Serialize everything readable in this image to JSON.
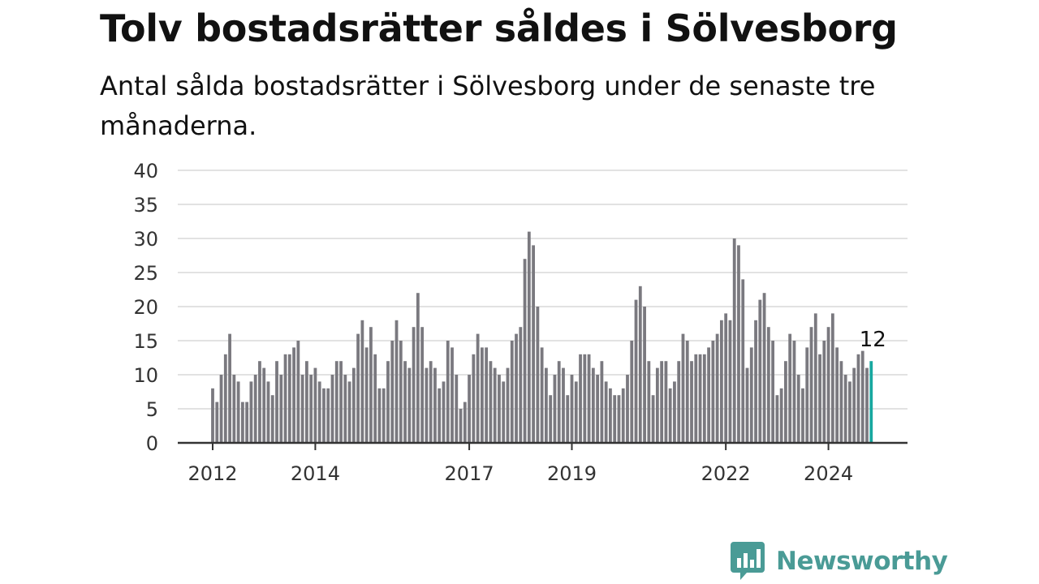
{
  "header": {
    "title": "Tolv bostadsrätter såldes i Sölvesborg",
    "subtitle": "Antal sålda bostadsrätter i Sölvesborg under de senaste tre månaderna."
  },
  "brand": {
    "name": "Newsworthy",
    "color": "#4a9b96"
  },
  "colors": {
    "bar": "#7a797f",
    "highlight": "#18a8a0",
    "grid": "#d9d9d9",
    "axis": "#333333"
  },
  "chart_data": {
    "type": "bar",
    "title": "Tolv bostadsrätter såldes i Sölvesborg",
    "subtitle": "Antal sålda bostadsrätter i Sölvesborg under de senaste tre månaderna.",
    "xlabel": "",
    "ylabel": "",
    "ylim": [
      0,
      40
    ],
    "yticks": [
      "0",
      "5",
      "10",
      "15",
      "20",
      "25",
      "30",
      "35",
      "40"
    ],
    "x_tick_labels": [
      {
        "label": "2012",
        "index": 0
      },
      {
        "label": "2014",
        "index": 24
      },
      {
        "label": "2017",
        "index": 60
      },
      {
        "label": "2019",
        "index": 84
      },
      {
        "label": "2022",
        "index": 120
      },
      {
        "label": "2024",
        "index": 144
      }
    ],
    "grid": true,
    "legend": "none",
    "highlight_index": 154,
    "highlight_label": "12",
    "series": [
      {
        "values": [
          8,
          6,
          10,
          13,
          16,
          10,
          9,
          6,
          6,
          9,
          10,
          12,
          11,
          9,
          7,
          12,
          10,
          13,
          13,
          14,
          15,
          10,
          12,
          10,
          11,
          9,
          8,
          8,
          10,
          12,
          12,
          10,
          9,
          11,
          16,
          18,
          14,
          17,
          13,
          8,
          8,
          12,
          15,
          18,
          15,
          12,
          11,
          17,
          22,
          17,
          11,
          12,
          11,
          8,
          9,
          15,
          14,
          10,
          5,
          6,
          10,
          13,
          16,
          14,
          14,
          12,
          11,
          10,
          9,
          11,
          15,
          16,
          17,
          27,
          31,
          29,
          20,
          14,
          11,
          7,
          10,
          12,
          11,
          7,
          10,
          9,
          13,
          13,
          13,
          11,
          10,
          12,
          9,
          8,
          7,
          7,
          8,
          10,
          15,
          21,
          23,
          20,
          12,
          7,
          11,
          12,
          12,
          8,
          9,
          12,
          16,
          15,
          12,
          13,
          13,
          13,
          14,
          15,
          16,
          18,
          19,
          18,
          30,
          29,
          24,
          11,
          14,
          18,
          21,
          22,
          17,
          15,
          7,
          8,
          12,
          16,
          15,
          10,
          8,
          14,
          17,
          19,
          13,
          15,
          17,
          19,
          14,
          12,
          10,
          9,
          11,
          13,
          13.5,
          11,
          12
        ]
      }
    ]
  }
}
